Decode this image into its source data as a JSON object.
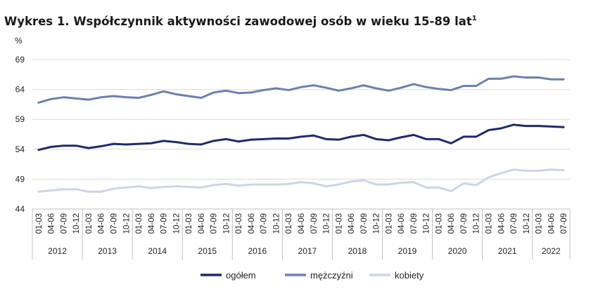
{
  "chart_data": {
    "type": "line",
    "title": "Wykres 1. Współczynnik aktywności zawodowej osób w wieku 15-89 lat",
    "title_superscript": "1",
    "ylabel": "%",
    "ylim": [
      44,
      69
    ],
    "yticks": [
      44,
      49,
      54,
      59,
      64,
      69
    ],
    "grid": true,
    "legend_position": "bottom-center",
    "quarter_labels": [
      "01-03",
      "04-06",
      "07-09",
      "10-12"
    ],
    "years": [
      "2012",
      "2013",
      "2014",
      "2015",
      "2016",
      "2017",
      "2018",
      "2019",
      "2020",
      "2021",
      "2022"
    ],
    "categories": [
      "2012 01-03",
      "2012 04-06",
      "2012 07-09",
      "2012 10-12",
      "2013 01-03",
      "2013 04-06",
      "2013 07-09",
      "2013 10-12",
      "2014 01-03",
      "2014 04-06",
      "2014 07-09",
      "2014 10-12",
      "2015 01-03",
      "2015 04-06",
      "2015 07-09",
      "2015 10-12",
      "2016 01-03",
      "2016 04-06",
      "2016 07-09",
      "2016 10-12",
      "2017 01-03",
      "2017 04-06",
      "2017 07-09",
      "2017 10-12",
      "2018 01-03",
      "2018 04-06",
      "2018 07-09",
      "2018 10-12",
      "2019 01-03",
      "2019 04-06",
      "2019 07-09",
      "2019 10-12",
      "2020 01-03",
      "2020 04-06",
      "2020 07-09",
      "2020 10-12",
      "2021 01-03",
      "2021 04-06",
      "2021 07-09",
      "2021 10-12",
      "2022 01-03",
      "2022 04-06",
      "2022 07-09"
    ],
    "series": [
      {
        "name": "ogółem",
        "color": "#1f2a6b",
        "values": [
          53.9,
          54.4,
          54.6,
          54.6,
          54.2,
          54.5,
          54.9,
          54.8,
          54.9,
          55.0,
          55.4,
          55.2,
          54.9,
          54.8,
          55.4,
          55.7,
          55.3,
          55.6,
          55.7,
          55.8,
          55.8,
          56.1,
          56.3,
          55.7,
          55.6,
          56.1,
          56.4,
          55.7,
          55.5,
          56.0,
          56.4,
          55.7,
          55.7,
          55.0,
          56.1,
          56.1,
          57.2,
          57.5,
          58.1,
          57.9,
          57.9,
          57.8,
          57.7
        ]
      },
      {
        "name": "mężczyźni",
        "color": "#6b7fb0",
        "values": [
          61.8,
          62.4,
          62.7,
          62.5,
          62.3,
          62.7,
          62.9,
          62.7,
          62.6,
          63.1,
          63.7,
          63.2,
          62.9,
          62.6,
          63.5,
          63.8,
          63.4,
          63.5,
          63.9,
          64.2,
          63.9,
          64.4,
          64.7,
          64.3,
          63.8,
          64.2,
          64.7,
          64.2,
          63.8,
          64.3,
          64.9,
          64.4,
          64.1,
          63.9,
          64.6,
          64.6,
          65.8,
          65.8,
          66.2,
          66.0,
          66.0,
          65.7,
          65.7
        ]
      },
      {
        "name": "kobiety",
        "color": "#cdd4e6",
        "values": [
          46.9,
          47.1,
          47.3,
          47.3,
          46.9,
          46.9,
          47.4,
          47.6,
          47.8,
          47.5,
          47.7,
          47.8,
          47.7,
          47.6,
          48.0,
          48.2,
          47.9,
          48.1,
          48.1,
          48.1,
          48.2,
          48.5,
          48.3,
          47.8,
          48.1,
          48.6,
          48.8,
          48.1,
          48.1,
          48.4,
          48.5,
          47.6,
          47.6,
          47.0,
          48.3,
          48.0,
          49.3,
          50.0,
          50.6,
          50.4,
          50.4,
          50.6,
          50.5
        ]
      }
    ]
  }
}
